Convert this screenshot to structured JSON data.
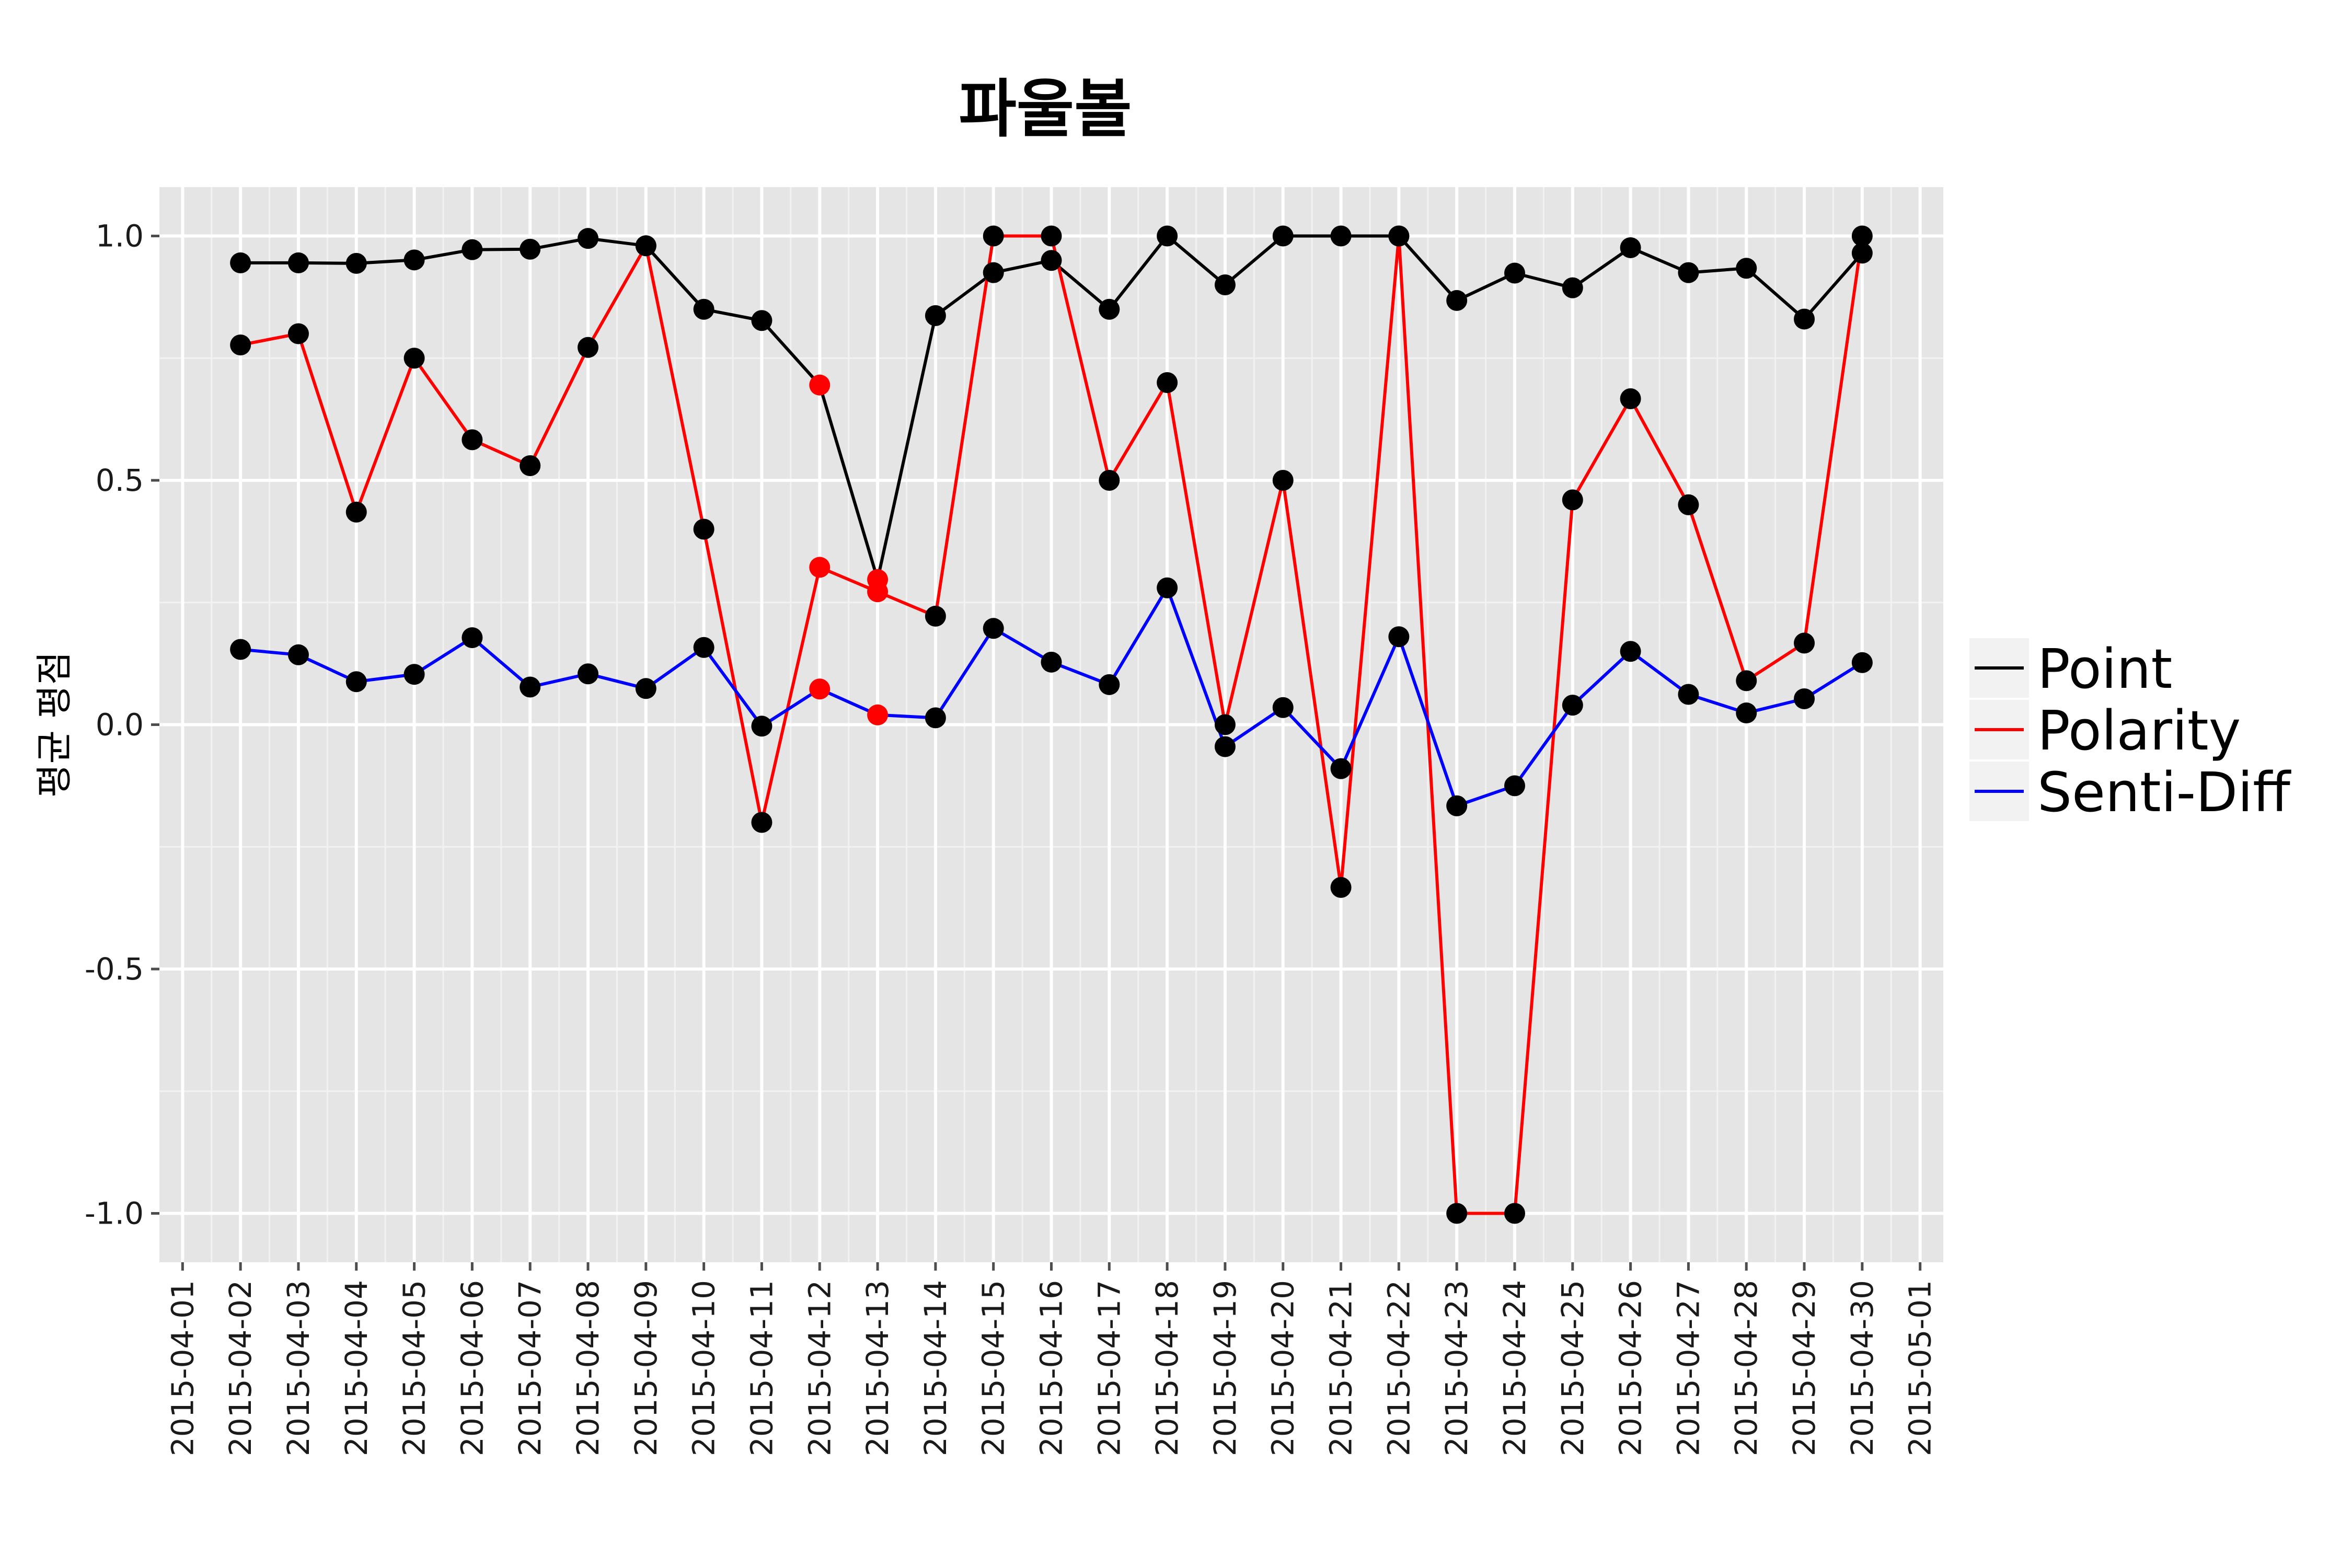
{
  "chart_data": {
    "type": "line",
    "title": "파울볼",
    "xlabel": "",
    "ylabel": "평균 평점",
    "ylim": [
      -1.1,
      1.1
    ],
    "y_ticks": [
      -1.0,
      -0.5,
      0.0,
      0.5,
      1.0
    ],
    "y_tick_labels": [
      "-1.0",
      "-0.5",
      "0.0",
      "0.5",
      "1.0"
    ],
    "x_ticks": [
      "2015-04-01",
      "2015-04-02",
      "2015-04-03",
      "2015-04-04",
      "2015-04-05",
      "2015-04-06",
      "2015-04-07",
      "2015-04-08",
      "2015-04-09",
      "2015-04-10",
      "2015-04-11",
      "2015-04-12",
      "2015-04-13",
      "2015-04-14",
      "2015-04-15",
      "2015-04-16",
      "2015-04-17",
      "2015-04-18",
      "2015-04-19",
      "2015-04-20",
      "2015-04-21",
      "2015-04-22",
      "2015-04-23",
      "2015-04-24",
      "2015-04-25",
      "2015-04-26",
      "2015-04-27",
      "2015-04-28",
      "2015-04-29",
      "2015-04-30",
      "2015-05-01"
    ],
    "x": [
      "2015-04-02",
      "2015-04-03",
      "2015-04-04",
      "2015-04-05",
      "2015-04-06",
      "2015-04-07",
      "2015-04-08",
      "2015-04-09",
      "2015-04-10",
      "2015-04-11",
      "2015-04-12",
      "2015-04-13",
      "2015-04-14",
      "2015-04-15",
      "2015-04-16",
      "2015-04-17",
      "2015-04-18",
      "2015-04-19",
      "2015-04-20",
      "2015-04-21",
      "2015-04-22",
      "2015-04-23",
      "2015-04-24",
      "2015-04-25",
      "2015-04-26",
      "2015-04-27",
      "2015-04-28",
      "2015-04-29",
      "2015-04-30"
    ],
    "grid": true,
    "legend_position": "right",
    "marker_color": "#000000",
    "highlight_marker_color": "#ff0000",
    "highlight_dates": [
      "2015-04-12",
      "2015-04-13"
    ],
    "series": [
      {
        "name": "Point",
        "color": "#000000",
        "values": [
          0.945,
          0.945,
          0.944,
          0.951,
          0.972,
          0.973,
          0.995,
          0.98,
          0.85,
          0.827,
          0.695,
          0.297,
          0.837,
          0.925,
          0.95,
          0.85,
          1.0,
          0.9,
          1.0,
          1.0,
          1.0,
          0.868,
          0.924,
          0.894,
          0.976,
          0.925,
          0.934,
          0.83,
          0.965
        ]
      },
      {
        "name": "Polarity",
        "color": "#ff0000",
        "values": [
          0.777,
          0.8,
          0.435,
          0.75,
          0.583,
          0.53,
          0.772,
          0.98,
          0.4,
          -0.2,
          0.322,
          0.272,
          0.222,
          1.0,
          1.0,
          0.5,
          0.7,
          0.0,
          0.5,
          -0.333,
          1.0,
          -1.0,
          -1.0,
          0.46,
          0.667,
          0.45,
          0.09,
          0.167,
          1.0
        ]
      },
      {
        "name": "Senti-Diff",
        "color": "#0000ff",
        "values": [
          0.154,
          0.143,
          0.088,
          0.103,
          0.178,
          0.077,
          0.104,
          0.074,
          0.158,
          -0.003,
          0.073,
          0.02,
          0.014,
          0.197,
          0.128,
          0.082,
          0.28,
          -0.045,
          0.035,
          -0.09,
          0.18,
          -0.166,
          -0.125,
          0.04,
          0.15,
          0.062,
          0.024,
          0.053,
          0.127
        ]
      }
    ]
  }
}
